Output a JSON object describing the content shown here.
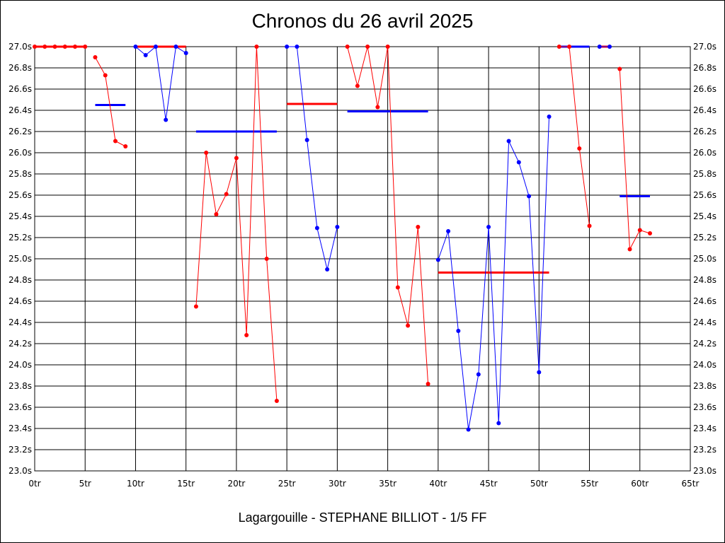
{
  "chart_data": {
    "type": "line",
    "title": "Chronos du 26 avril 2025",
    "subtitle": "Lagargouille - STEPHANE BILLIOT - 1/5 FF",
    "xlim": [
      0,
      65
    ],
    "ylim": [
      23.0,
      27.0
    ],
    "x_ticks": [
      0,
      5,
      10,
      15,
      20,
      25,
      30,
      35,
      40,
      45,
      50,
      55,
      60,
      65
    ],
    "x_tick_labels": [
      "0tr",
      "5tr",
      "10tr",
      "15tr",
      "20tr",
      "25tr",
      "30tr",
      "35tr",
      "40tr",
      "45tr",
      "50tr",
      "55tr",
      "60tr",
      "65tr"
    ],
    "y_ticks": [
      23.0,
      23.2,
      23.4,
      23.6,
      23.8,
      24.0,
      24.2,
      24.4,
      24.6,
      24.8,
      25.0,
      25.2,
      25.4,
      25.6,
      25.8,
      26.0,
      26.2,
      26.4,
      26.6,
      26.8,
      27.0
    ],
    "y_tick_labels": [
      "23.0s",
      "23.2s",
      "23.4s",
      "23.6s",
      "23.8s",
      "24.0s",
      "24.2s",
      "24.4s",
      "24.6s",
      "24.8s",
      "25.0s",
      "25.2s",
      "25.4s",
      "25.6s",
      "25.8s",
      "26.0s",
      "26.2s",
      "26.4s",
      "26.6s",
      "26.8s",
      "27.0s"
    ],
    "grid": true,
    "colors": {
      "red": "#ff0000",
      "blue": "#0000ff",
      "grid": "#000000"
    },
    "series": [
      {
        "color": "#ff0000",
        "points": [
          [
            0,
            27.0
          ],
          [
            1,
            27.0
          ],
          [
            2,
            27.0
          ],
          [
            3,
            27.0
          ],
          [
            4,
            27.0
          ],
          [
            5,
            27.0
          ]
        ],
        "mean": 27.0
      },
      {
        "color": "#ff0000",
        "points": [
          [
            6,
            26.9
          ],
          [
            7,
            26.73
          ],
          [
            8,
            26.11
          ],
          [
            9,
            26.06
          ]
        ],
        "mean": null
      },
      {
        "color": "#0000ff",
        "points": [
          [
            10,
            27.0
          ],
          [
            11,
            26.92
          ],
          [
            12,
            27.0
          ],
          [
            13,
            26.31
          ],
          [
            14,
            27.0
          ],
          [
            15,
            26.94
          ]
        ],
        "mean": null
      },
      {
        "color": "#ff0000",
        "points": [
          [
            16,
            24.55
          ],
          [
            17,
            26.0
          ],
          [
            18,
            25.42
          ],
          [
            19,
            25.61
          ],
          [
            20,
            25.95
          ],
          [
            21,
            24.28
          ],
          [
            22,
            27.0
          ],
          [
            23,
            25.0
          ],
          [
            24,
            23.66
          ]
        ],
        "mean": null
      },
      {
        "color": "#0000ff",
        "points": [
          [
            25,
            27.0
          ],
          [
            26,
            27.0
          ],
          [
            27,
            26.12
          ],
          [
            28,
            25.29
          ],
          [
            29,
            24.9
          ],
          [
            30,
            25.3
          ]
        ],
        "mean": null
      },
      {
        "color": "#ff0000",
        "points": [
          [
            31,
            27.0
          ],
          [
            32,
            26.63
          ],
          [
            33,
            27.0
          ],
          [
            34,
            26.43
          ],
          [
            35,
            27.0
          ],
          [
            36,
            24.73
          ],
          [
            37,
            24.37
          ],
          [
            38,
            25.3
          ],
          [
            39,
            23.82
          ]
        ],
        "mean": null
      },
      {
        "color": "#0000ff",
        "points": [
          [
            40,
            24.99
          ],
          [
            41,
            25.26
          ],
          [
            42,
            24.32
          ],
          [
            43,
            23.39
          ],
          [
            44,
            23.91
          ],
          [
            45,
            25.3
          ],
          [
            46,
            23.45
          ],
          [
            47,
            26.11
          ],
          [
            48,
            25.91
          ],
          [
            49,
            25.59
          ],
          [
            50,
            23.93
          ],
          [
            51,
            26.34
          ]
        ],
        "mean": null
      },
      {
        "color": "#ff0000",
        "points": [
          [
            52,
            27.0
          ],
          [
            53,
            27.0
          ],
          [
            54,
            26.04
          ],
          [
            55,
            25.31
          ]
        ],
        "mean": null
      },
      {
        "color": "#0000ff",
        "points": [
          [
            56,
            27.0
          ],
          [
            57,
            27.0
          ]
        ],
        "mean": null
      },
      {
        "color": "#ff0000",
        "points": [
          [
            58,
            26.79
          ],
          [
            59,
            25.09
          ],
          [
            60,
            25.27
          ],
          [
            61,
            25.24
          ]
        ],
        "mean": null
      }
    ],
    "means": [
      {
        "color": "#ff0000",
        "x": [
          0,
          5
        ],
        "y": 27.0
      },
      {
        "color": "#0000ff",
        "x": [
          6,
          9
        ],
        "y": 26.45
      },
      {
        "color": "#ff0000",
        "x": [
          10,
          15
        ],
        "y": 27.0
      },
      {
        "color": "#0000ff",
        "x": [
          16,
          24
        ],
        "y": 26.2
      },
      {
        "color": "#ff0000",
        "x": [
          25,
          30
        ],
        "y": 26.46
      },
      {
        "color": "#0000ff",
        "x": [
          31,
          39
        ],
        "y": 26.39
      },
      {
        "color": "#ff0000",
        "x": [
          40,
          51
        ],
        "y": 24.87
      },
      {
        "color": "#0000ff",
        "x": [
          52,
          55
        ],
        "y": 27.0
      },
      {
        "color": "#ff0000",
        "x": [
          56,
          57
        ],
        "y": 27.0
      },
      {
        "color": "#0000ff",
        "x": [
          58,
          61
        ],
        "y": 25.59
      }
    ]
  }
}
